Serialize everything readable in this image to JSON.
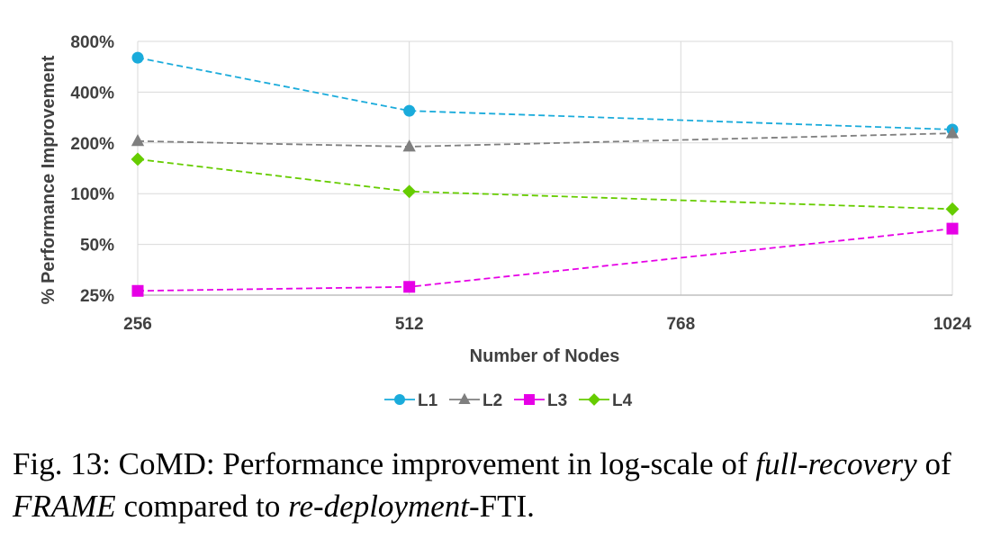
{
  "chart_data": {
    "type": "line",
    "scale": "log",
    "title": "",
    "xlabel": "Number of Nodes",
    "ylabel": "% Performance Improvement",
    "x_ticks": [
      256,
      512,
      768,
      1024
    ],
    "x_tick_labels": [
      "256",
      "512",
      "768",
      "1024"
    ],
    "y_ticks": [
      25,
      50,
      100,
      200,
      400,
      800
    ],
    "y_tick_labels": [
      "25%",
      "50%",
      "100%",
      "200%",
      "400%",
      "800%"
    ],
    "xlim": [
      256,
      1024
    ],
    "ylim": [
      25,
      800
    ],
    "grid": "vertical",
    "legend_position": "bottom",
    "series": [
      {
        "name": "L1",
        "x": [
          256,
          512,
          1024
        ],
        "values": [
          640,
          310,
          240
        ],
        "color": "#1aabdb",
        "marker": "circle"
      },
      {
        "name": "L2",
        "x": [
          256,
          512,
          1024
        ],
        "values": [
          205,
          190,
          228
        ],
        "color": "#7f7f7f",
        "marker": "triangle"
      },
      {
        "name": "L3",
        "x": [
          256,
          512,
          1024
        ],
        "values": [
          26.5,
          28,
          62
        ],
        "color": "#e600e6",
        "marker": "square"
      },
      {
        "name": "L4",
        "x": [
          256,
          512,
          1024
        ],
        "values": [
          160,
          103,
          81
        ],
        "color": "#66cc00",
        "marker": "diamond"
      }
    ]
  },
  "caption": {
    "prefix": "Fig. 13: CoMD: Performance improvement in log-scale of ",
    "em1": "full-recovery",
    "mid1": " of ",
    "em2": "FRAME",
    "mid2": " compared to ",
    "em3": "re-deployment",
    "suffix": "-FTI."
  }
}
